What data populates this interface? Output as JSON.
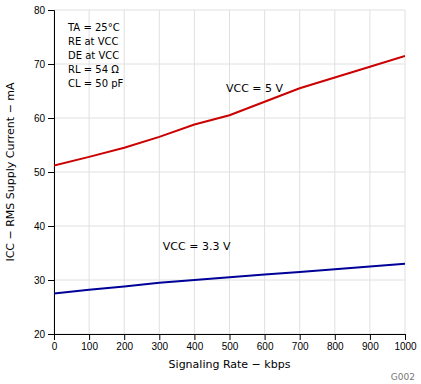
{
  "chart_data": {
    "type": "line",
    "xlabel": "Signaling Rate − kbps",
    "ylabel": "ICC − RMS Supply Current − mA",
    "x": [
      0,
      100,
      200,
      300,
      400,
      500,
      600,
      700,
      800,
      900,
      1000
    ],
    "series": [
      {
        "color": "#cc0000",
        "values": [
          51.2,
          52.8,
          54.5,
          56.5,
          58.8,
          60.5,
          63.0,
          65.5,
          67.5,
          69.5,
          71.5
        ]
      },
      {
        "color": "#000099",
        "values": [
          27.5,
          28.2,
          28.8,
          29.5,
          30.0,
          30.5,
          31.0,
          31.5,
          32.0,
          32.5,
          33.0
        ]
      }
    ],
    "xlim": [
      0,
      1000
    ],
    "ylim": [
      20,
      80
    ],
    "xticks": [
      0,
      100,
      200,
      300,
      400,
      500,
      600,
      700,
      800,
      900,
      1000
    ],
    "yticks": [
      20,
      30,
      40,
      50,
      60,
      70,
      80
    ],
    "grid": true,
    "annotations": [
      {
        "text": "VCC = 5 V",
        "x": 490,
        "y": 64.5
      },
      {
        "text": "VCC = 3.3 V",
        "x": 310,
        "y": 35.2
      }
    ],
    "conditions": [
      "TA = 25°C",
      "RE at VCC",
      "DE at VCC",
      "RL = 54 Ω",
      "CL = 50 pF"
    ],
    "watermark": "G002"
  }
}
